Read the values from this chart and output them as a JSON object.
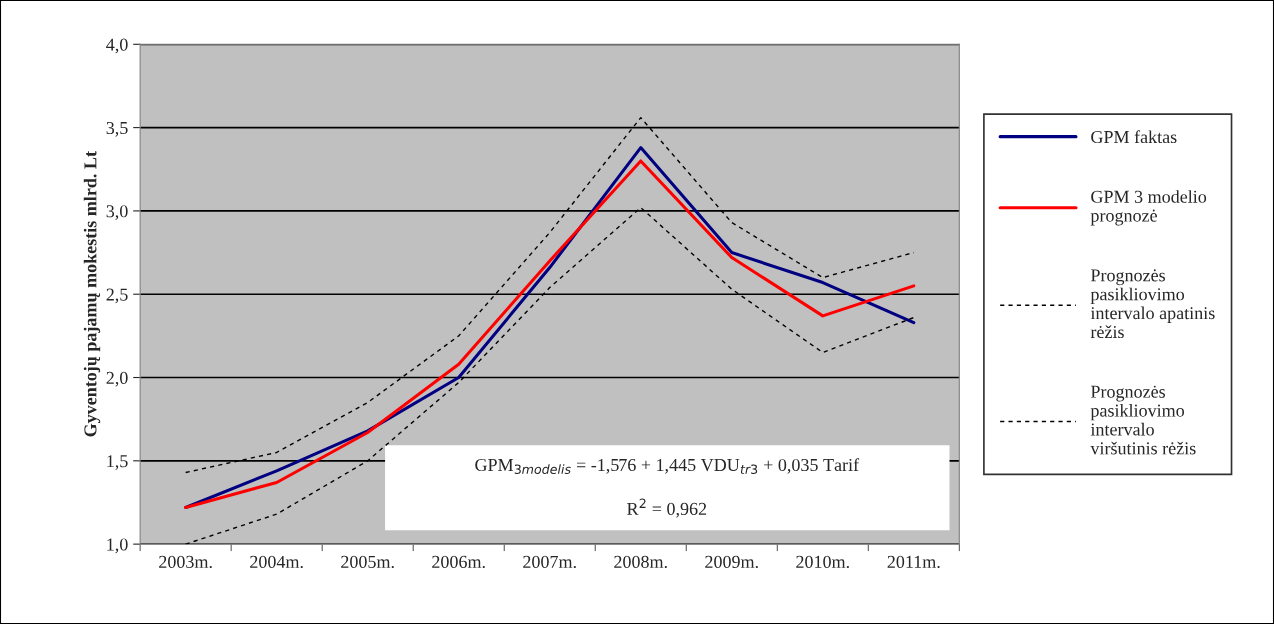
{
  "chart_data": {
    "type": "line",
    "ylabel": "Gyventojų pajamų mokestis mlrd. Lt",
    "categories": [
      "2003m.",
      "2004m.",
      "2005m.",
      "2006m.",
      "2007m.",
      "2008m.",
      "2009m.",
      "2010m.",
      "2011m."
    ],
    "series": [
      {
        "name": "GPM faktas",
        "color": "#000080",
        "line_style": "solid",
        "values": [
          1.22,
          1.44,
          1.68,
          2.0,
          2.66,
          3.38,
          2.75,
          2.57,
          2.33
        ]
      },
      {
        "name": "GPM 3 modelio\nprognozė",
        "color": "#ff0000",
        "line_style": "solid",
        "values": [
          1.22,
          1.37,
          1.67,
          2.08,
          2.7,
          3.3,
          2.72,
          2.37,
          2.55
        ]
      },
      {
        "name": "Prognozės\npasikliovimo\nintervalo apatinis\nrėžis",
        "color": "#000000",
        "line_style": "dashed",
        "values": [
          1.0,
          1.18,
          1.5,
          1.97,
          2.54,
          3.02,
          2.53,
          2.15,
          2.36
        ]
      },
      {
        "name": "Prognozės\npasikliovimo\nintervalo\nviršutinis rėžis",
        "color": "#000000",
        "line_style": "dashed",
        "values": [
          1.43,
          1.55,
          1.85,
          2.25,
          2.87,
          3.56,
          2.93,
          2.6,
          2.75
        ]
      }
    ],
    "ylim": [
      1.0,
      4.0
    ],
    "yticks": [
      {
        "value": 1.0,
        "label": "1,0"
      },
      {
        "value": 1.5,
        "label": "1,5"
      },
      {
        "value": 2.0,
        "label": "2,0"
      },
      {
        "value": 2.5,
        "label": "2,5"
      },
      {
        "value": 3.0,
        "label": "3,0"
      },
      {
        "value": 3.5,
        "label": "3,5"
      },
      {
        "value": 4.0,
        "label": "4,0"
      }
    ],
    "grid": "y",
    "legend": "right",
    "marker": "none",
    "annotations": [
      "GPM$_{3modelis}$ = -1,576 + 1,445 VDU$_{tr3}$ + 0,035 Tarif",
      "R$^{2}$ = 0,962"
    ]
  }
}
